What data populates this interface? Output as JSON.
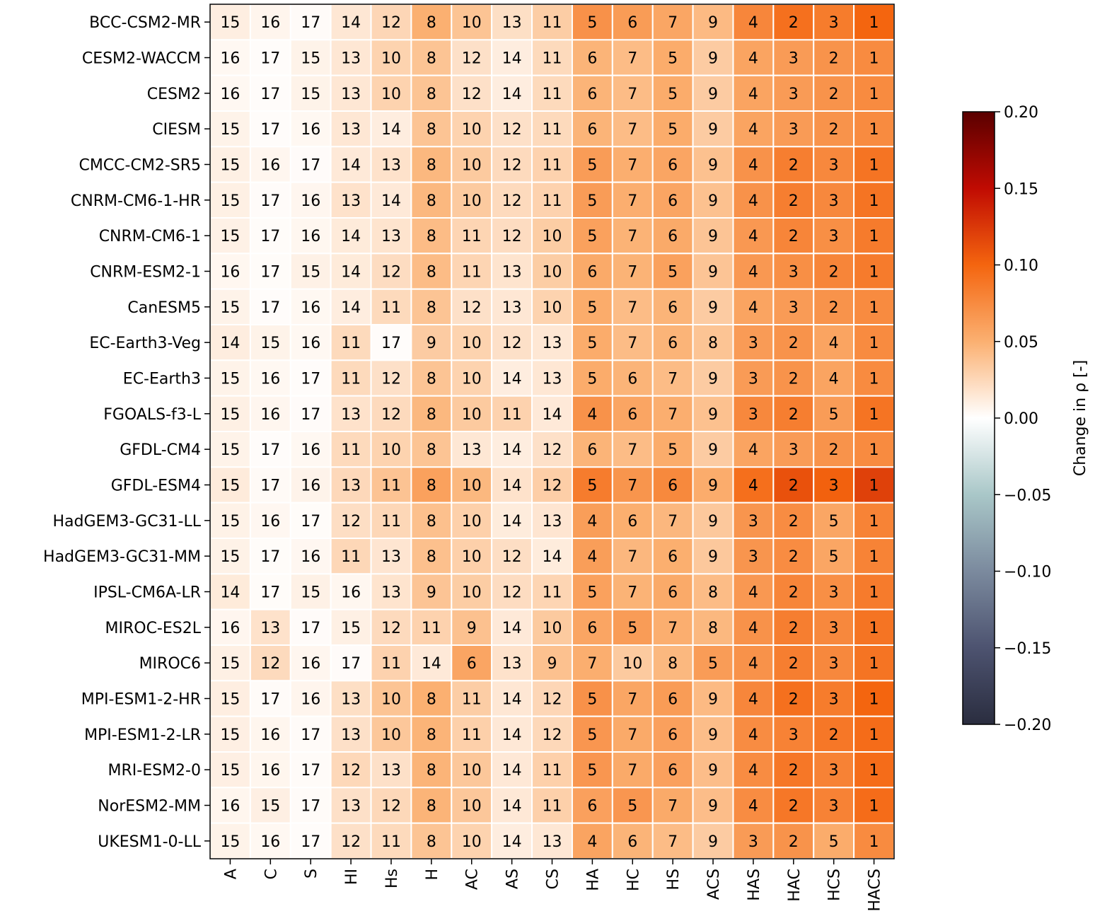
{
  "chart_data": {
    "type": "heatmap",
    "title": "",
    "xlabel": "",
    "ylabel": "",
    "x_categories": [
      "A",
      "C",
      "S",
      "HI",
      "Hs",
      "H",
      "AC",
      "AS",
      "CS",
      "HA",
      "HC",
      "HS",
      "ACS",
      "HAS",
      "HAC",
      "HCS",
      "HACS"
    ],
    "y_categories": [
      "BCC-CSM2-MR",
      "CESM2-WACCM",
      "CESM2",
      "CIESM",
      "CMCC-CM2-SR5",
      "CNRM-CM6-1-HR",
      "CNRM-CM6-1",
      "CNRM-ESM2-1",
      "CanESM5",
      "EC-Earth3-Veg",
      "EC-Earth3",
      "FGOALS-f3-L",
      "GFDL-CM4",
      "GFDL-ESM4",
      "HadGEM3-GC31-LL",
      "HadGEM3-GC31-MM",
      "IPSL-CM6A-LR",
      "MIROC-ES2L",
      "MIROC6",
      "MPI-ESM1-2-HR",
      "MPI-ESM1-2-LR",
      "MRI-ESM2-0",
      "NorESM2-MM",
      "UKESM1-0-LL"
    ],
    "cell_labels": [
      [
        15,
        16,
        17,
        14,
        12,
        8,
        10,
        13,
        11,
        5,
        6,
        7,
        9,
        4,
        2,
        3,
        1
      ],
      [
        16,
        17,
        15,
        13,
        10,
        8,
        12,
        14,
        11,
        6,
        7,
        5,
        9,
        4,
        3,
        2,
        1
      ],
      [
        16,
        17,
        15,
        13,
        10,
        8,
        12,
        14,
        11,
        6,
        7,
        5,
        9,
        4,
        3,
        2,
        1
      ],
      [
        15,
        17,
        16,
        13,
        14,
        8,
        10,
        12,
        11,
        6,
        7,
        5,
        9,
        4,
        3,
        2,
        1
      ],
      [
        15,
        16,
        17,
        14,
        13,
        8,
        10,
        12,
        11,
        5,
        7,
        6,
        9,
        4,
        2,
        3,
        1
      ],
      [
        15,
        17,
        16,
        13,
        14,
        8,
        10,
        12,
        11,
        5,
        7,
        6,
        9,
        4,
        2,
        3,
        1
      ],
      [
        15,
        17,
        16,
        14,
        13,
        8,
        11,
        12,
        10,
        5,
        7,
        6,
        9,
        4,
        2,
        3,
        1
      ],
      [
        16,
        17,
        15,
        14,
        12,
        8,
        11,
        13,
        10,
        6,
        7,
        5,
        9,
        4,
        3,
        2,
        1
      ],
      [
        15,
        17,
        16,
        14,
        11,
        8,
        12,
        13,
        10,
        5,
        7,
        6,
        9,
        4,
        3,
        2,
        1
      ],
      [
        14,
        15,
        16,
        11,
        17,
        9,
        10,
        12,
        13,
        5,
        7,
        6,
        8,
        3,
        2,
        4,
        1
      ],
      [
        15,
        16,
        17,
        11,
        12,
        8,
        10,
        14,
        13,
        5,
        6,
        7,
        9,
        3,
        2,
        4,
        1
      ],
      [
        15,
        16,
        17,
        13,
        12,
        8,
        10,
        11,
        14,
        4,
        6,
        7,
        9,
        3,
        2,
        5,
        1
      ],
      [
        15,
        17,
        16,
        11,
        10,
        8,
        13,
        14,
        12,
        6,
        7,
        5,
        9,
        4,
        3,
        2,
        1
      ],
      [
        15,
        17,
        16,
        13,
        11,
        8,
        10,
        14,
        12,
        5,
        7,
        6,
        9,
        4,
        2,
        3,
        1
      ],
      [
        15,
        16,
        17,
        12,
        11,
        8,
        10,
        14,
        13,
        4,
        6,
        7,
        9,
        3,
        2,
        5,
        1
      ],
      [
        15,
        17,
        16,
        11,
        13,
        8,
        10,
        12,
        14,
        4,
        7,
        6,
        9,
        3,
        2,
        5,
        1
      ],
      [
        14,
        17,
        15,
        16,
        13,
        9,
        10,
        12,
        11,
        5,
        7,
        6,
        8,
        4,
        2,
        3,
        1
      ],
      [
        16,
        13,
        17,
        15,
        12,
        11,
        9,
        14,
        10,
        6,
        5,
        7,
        8,
        4,
        2,
        3,
        1
      ],
      [
        15,
        12,
        16,
        17,
        11,
        14,
        6,
        13,
        9,
        7,
        10,
        8,
        5,
        4,
        2,
        3,
        1
      ],
      [
        15,
        17,
        16,
        13,
        10,
        8,
        11,
        14,
        12,
        5,
        7,
        6,
        9,
        4,
        2,
        3,
        1
      ],
      [
        15,
        16,
        17,
        13,
        10,
        8,
        11,
        14,
        12,
        5,
        7,
        6,
        9,
        4,
        3,
        2,
        1
      ],
      [
        15,
        16,
        17,
        12,
        13,
        8,
        10,
        14,
        11,
        5,
        7,
        6,
        9,
        4,
        2,
        3,
        1
      ],
      [
        16,
        15,
        17,
        13,
        12,
        8,
        10,
        14,
        11,
        6,
        5,
        7,
        9,
        4,
        2,
        3,
        1
      ],
      [
        15,
        16,
        17,
        12,
        11,
        8,
        10,
        14,
        13,
        4,
        6,
        7,
        9,
        3,
        2,
        5,
        1
      ]
    ],
    "row_peak_values": [
      0.1,
      0.075,
      0.075,
      0.075,
      0.09,
      0.09,
      0.085,
      0.085,
      0.075,
      0.075,
      0.075,
      0.09,
      0.075,
      0.12,
      0.08,
      0.08,
      0.085,
      0.09,
      0.09,
      0.1,
      0.095,
      0.095,
      0.095,
      0.075
    ],
    "colorbar": {
      "label": "Change in ρ [-]",
      "range": [
        -0.2,
        0.2
      ],
      "ticks": [
        "−0.20",
        "−0.15",
        "−0.10",
        "−0.05",
        "0.00",
        "0.05",
        "0.10",
        "0.15",
        "0.20"
      ],
      "tick_values": [
        -0.2,
        -0.15,
        -0.1,
        -0.05,
        0.0,
        0.05,
        0.1,
        0.15,
        0.2
      ],
      "colors": [
        "#2a2d3f",
        "#4d5370",
        "#7b8a9e",
        "#a9c7c8",
        "#ffffff",
        "#fbb071",
        "#f4650f",
        "#c00b02",
        "#5a0000"
      ]
    },
    "grid_color": "#ffffff"
  }
}
